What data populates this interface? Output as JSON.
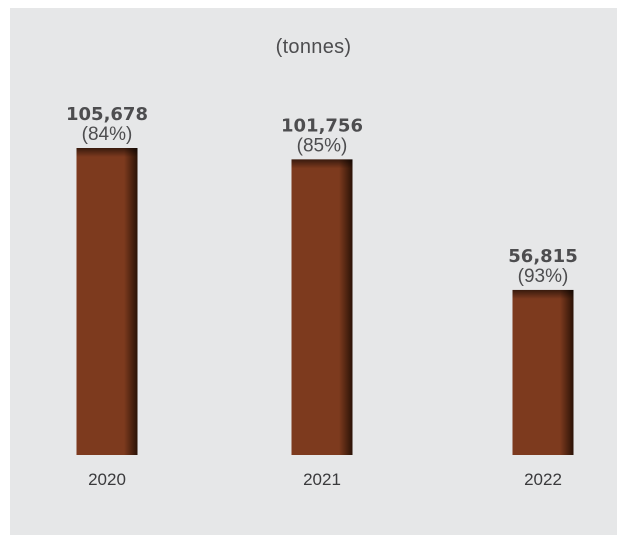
{
  "chart_data": {
    "type": "bar",
    "subtitle": "(tonnes)",
    "categories": [
      "2020",
      "2021",
      "2022"
    ],
    "values": [
      105678,
      101756,
      56815
    ],
    "value_labels": [
      "105,678",
      "101,756",
      "56,815"
    ],
    "percent_labels": [
      "(84%)",
      "(85%)",
      "(93%)"
    ],
    "xlabel": "",
    "ylabel": "",
    "grid": false,
    "legend": "none",
    "bar_color": "#7d3a1e",
    "bar_shadow_color": "#2a1206",
    "background_color": "#e6e7e8"
  }
}
